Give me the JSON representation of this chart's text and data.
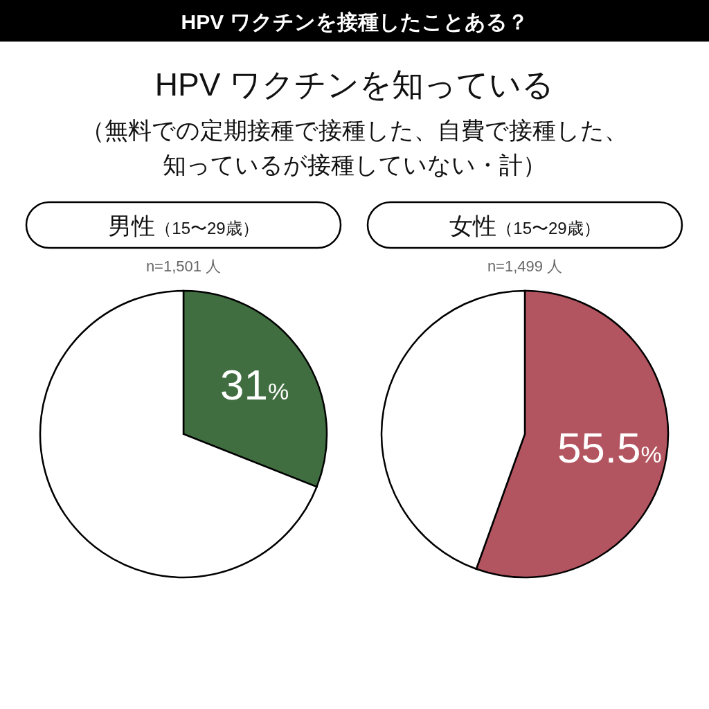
{
  "chart_data": [
    {
      "type": "other",
      "title": "HPV ワクチンを接種したことある？",
      "subtitle": "HPV ワクチンを知っている",
      "annotations": [
        "（無料での定期接種で接種した、自費で接種した、",
        "知っているが接種していない・計）"
      ]
    },
    {
      "type": "pie",
      "title": "男性（15〜29歳）",
      "subtitle": "n=1,501 人",
      "categories": [
        null,
        null
      ],
      "values": [
        31,
        69
      ],
      "colors": [
        "#416e41",
        "#ffffff"
      ],
      "value_labels": [
        "31%",
        null
      ]
    },
    {
      "type": "pie",
      "title": "女性（15〜29歳）",
      "subtitle": "n=1,499 人",
      "categories": [
        null,
        null
      ],
      "values": [
        55.5,
        44.5
      ],
      "colors": [
        "#b35560",
        "#ffffff"
      ],
      "value_labels": [
        "55.5%",
        null
      ]
    }
  ]
}
